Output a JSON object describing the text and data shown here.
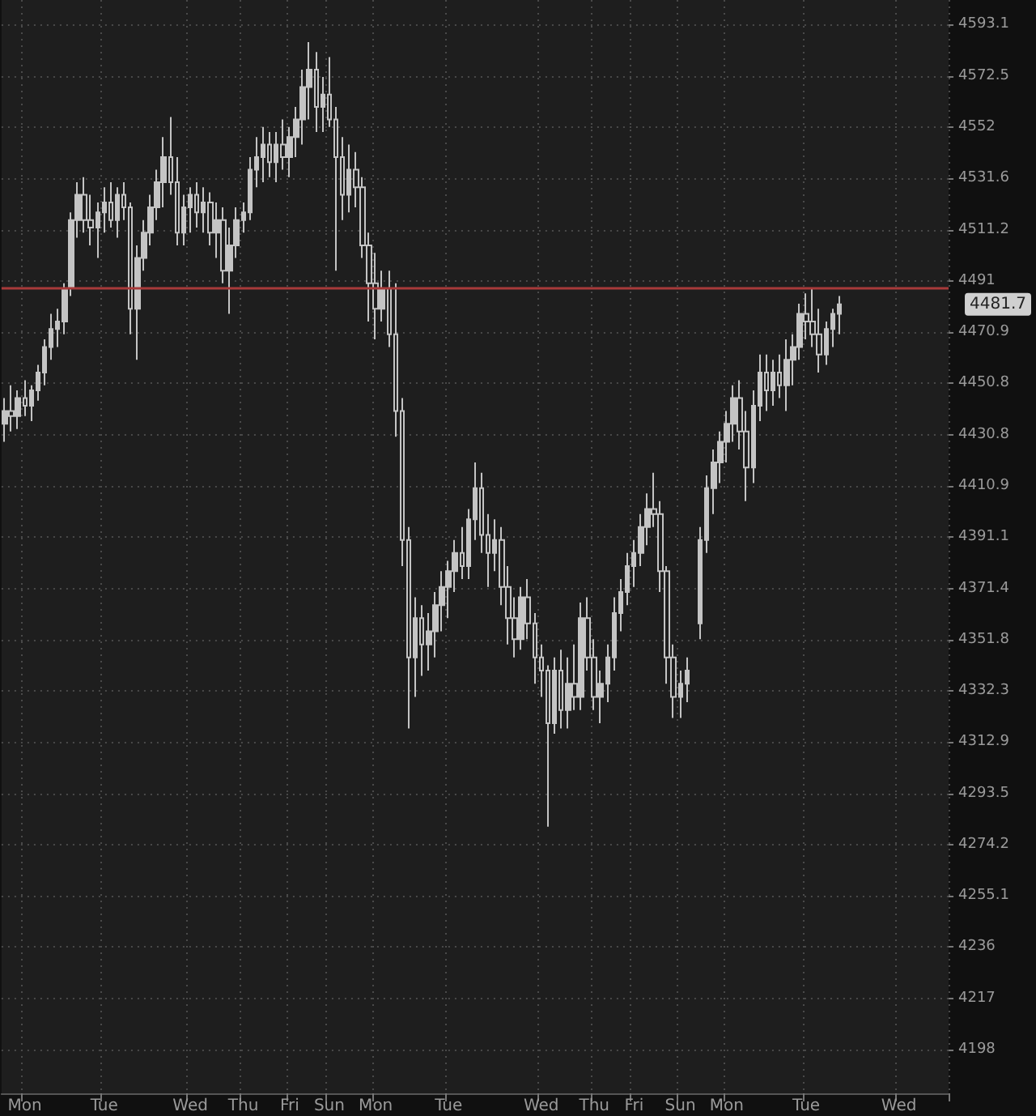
{
  "chart_data": {
    "type": "candlestick",
    "log": true,
    "grid": true,
    "color": "#c4c4c4",
    "ylim": [
      4182,
      4603
    ],
    "yticks": [
      4198,
      4217,
      4236,
      4255.1,
      4274.2,
      4293.5,
      4312.9,
      4332.3,
      4351.8,
      4371.4,
      4391.1,
      4410.9,
      4430.8,
      4450.8,
      4470.9,
      4491,
      4511.2,
      4531.6,
      4552,
      4572.5,
      4593.1
    ],
    "ref_lines": [
      {
        "axis": "y",
        "value": 4488,
        "color": "#a83a3a"
      }
    ],
    "annotations": [
      "4481.7"
    ],
    "categories": [
      null,
      null,
      null,
      "Mon",
      null,
      null,
      null,
      null,
      null,
      null,
      null,
      null,
      null,
      null,
      null,
      "Tue",
      null,
      null,
      null,
      null,
      null,
      null,
      null,
      null,
      null,
      null,
      null,
      null,
      "Wed",
      null,
      null,
      null,
      null,
      null,
      null,
      null,
      "Thu",
      null,
      null,
      null,
      null,
      null,
      null,
      "Fri",
      null,
      null,
      null,
      null,
      null,
      "Sun",
      null,
      null,
      null,
      null,
      null,
      null,
      "Mon",
      null,
      null,
      null,
      null,
      null,
      null,
      null,
      null,
      null,
      null,
      "Tue",
      null,
      null,
      null,
      null,
      null,
      null,
      null,
      null,
      null,
      null,
      null,
      null,
      null,
      "Wed",
      null,
      null,
      null,
      null,
      null,
      null,
      null,
      "Thu",
      null,
      null,
      null,
      null,
      null,
      "Fri",
      null,
      null,
      null,
      null,
      null,
      null,
      "Sun",
      null,
      null,
      null,
      null,
      null,
      null,
      "Mon",
      null,
      null,
      null,
      null,
      null,
      null,
      null,
      null,
      null,
      null,
      null,
      "Tue",
      null,
      null,
      null,
      null,
      null,
      null,
      null,
      null,
      null,
      null,
      null,
      null,
      null,
      "Wed",
      null,
      null,
      null,
      null,
      null,
      null,
      null
    ],
    "ohlc": [
      [
        4435,
        4445,
        4428,
        4440
      ],
      [
        4440,
        4450,
        4432,
        4438
      ],
      [
        4438,
        4448,
        4433,
        4445
      ],
      [
        4445,
        4452,
        4438,
        4442
      ],
      [
        4442,
        4450,
        4436,
        4448
      ],
      [
        4448,
        4458,
        4444,
        4455
      ],
      [
        4455,
        4468,
        4450,
        4465
      ],
      [
        4465,
        4478,
        4460,
        4472
      ],
      [
        4472,
        4480,
        4465,
        4475
      ],
      [
        4475,
        4490,
        4470,
        4488
      ],
      [
        4488,
        4518,
        4485,
        4515
      ],
      [
        4515,
        4530,
        4508,
        4525
      ],
      [
        4525,
        4532,
        4510,
        4515
      ],
      [
        4515,
        4525,
        4505,
        4512
      ],
      [
        4512,
        4522,
        4500,
        4518
      ],
      [
        4518,
        4528,
        4510,
        4522
      ],
      [
        4522,
        4530,
        4512,
        4515
      ],
      [
        4515,
        4528,
        4508,
        4525
      ],
      [
        4525,
        4530,
        4515,
        4520
      ],
      [
        4520,
        4522,
        4470,
        4480
      ],
      [
        4480,
        4505,
        4460,
        4500
      ],
      [
        4500,
        4515,
        4495,
        4510
      ],
      [
        4510,
        4525,
        4505,
        4520
      ],
      [
        4520,
        4535,
        4515,
        4530
      ],
      [
        4530,
        4548,
        4520,
        4540
      ],
      [
        4540,
        4556,
        4525,
        4530
      ],
      [
        4530,
        4540,
        4505,
        4510
      ],
      [
        4510,
        4525,
        4505,
        4520
      ],
      [
        4520,
        4528,
        4510,
        4525
      ],
      [
        4525,
        4530,
        4512,
        4518
      ],
      [
        4518,
        4528,
        4510,
        4522
      ],
      [
        4522,
        4526,
        4505,
        4510
      ],
      [
        4510,
        4522,
        4500,
        4515
      ],
      [
        4515,
        4520,
        4490,
        4495
      ],
      [
        4495,
        4512,
        4478,
        4505
      ],
      [
        4505,
        4520,
        4500,
        4515
      ],
      [
        4515,
        4522,
        4510,
        4518
      ],
      [
        4518,
        4540,
        4515,
        4535
      ],
      [
        4535,
        4548,
        4528,
        4540
      ],
      [
        4540,
        4552,
        4530,
        4545
      ],
      [
        4545,
        4550,
        4532,
        4538
      ],
      [
        4538,
        4550,
        4530,
        4545
      ],
      [
        4545,
        4555,
        4535,
        4540
      ],
      [
        4540,
        4552,
        4532,
        4548
      ],
      [
        4548,
        4560,
        4540,
        4555
      ],
      [
        4555,
        4575,
        4545,
        4568
      ],
      [
        4568,
        4586,
        4555,
        4575
      ],
      [
        4575,
        4582,
        4550,
        4560
      ],
      [
        4560,
        4572,
        4550,
        4565
      ],
      [
        4565,
        4580,
        4552,
        4555
      ],
      [
        4555,
        4560,
        4495,
        4540
      ],
      [
        4540,
        4548,
        4515,
        4525
      ],
      [
        4525,
        4545,
        4518,
        4535
      ],
      [
        4535,
        4542,
        4520,
        4528
      ],
      [
        4528,
        4532,
        4500,
        4505
      ],
      [
        4505,
        4510,
        4475,
        4490
      ],
      [
        4490,
        4502,
        4468,
        4480
      ],
      [
        4480,
        4495,
        4475,
        4488
      ],
      [
        4488,
        4495,
        4465,
        4470
      ],
      [
        4470,
        4490,
        4430,
        4440
      ],
      [
        4440,
        4445,
        4380,
        4390
      ],
      [
        4390,
        4395,
        4318,
        4345
      ],
      [
        4345,
        4368,
        4330,
        4360
      ],
      [
        4360,
        4365,
        4338,
        4350
      ],
      [
        4350,
        4362,
        4340,
        4355
      ],
      [
        4355,
        4370,
        4345,
        4365
      ],
      [
        4365,
        4378,
        4355,
        4372
      ],
      [
        4372,
        4382,
        4360,
        4378
      ],
      [
        4378,
        4390,
        4370,
        4385
      ],
      [
        4385,
        4395,
        4375,
        4380
      ],
      [
        4380,
        4402,
        4375,
        4398
      ],
      [
        4398,
        4420,
        4390,
        4410
      ],
      [
        4410,
        4416,
        4385,
        4392
      ],
      [
        4392,
        4400,
        4372,
        4385
      ],
      [
        4385,
        4398,
        4378,
        4390
      ],
      [
        4390,
        4395,
        4365,
        4372
      ],
      [
        4372,
        4380,
        4350,
        4360
      ],
      [
        4360,
        4368,
        4345,
        4352
      ],
      [
        4352,
        4372,
        4348,
        4368
      ],
      [
        4368,
        4375,
        4352,
        4358
      ],
      [
        4358,
        4362,
        4335,
        4345
      ],
      [
        4345,
        4350,
        4330,
        4340
      ],
      [
        4340,
        4342,
        4281,
        4320
      ],
      [
        4320,
        4345,
        4316,
        4340
      ],
      [
        4340,
        4348,
        4318,
        4325
      ],
      [
        4325,
        4345,
        4318,
        4335
      ],
      [
        4335,
        4350,
        4325,
        4330
      ],
      [
        4330,
        4366,
        4325,
        4360
      ],
      [
        4360,
        4368,
        4340,
        4345
      ],
      [
        4345,
        4352,
        4325,
        4330
      ],
      [
        4330,
        4340,
        4320,
        4335
      ],
      [
        4335,
        4350,
        4328,
        4345
      ],
      [
        4345,
        4368,
        4340,
        4362
      ],
      [
        4362,
        4375,
        4355,
        4370
      ],
      [
        4370,
        4385,
        4365,
        4380
      ],
      [
        4380,
        4390,
        4372,
        4385
      ],
      [
        4385,
        4400,
        4380,
        4395
      ],
      [
        4395,
        4408,
        4388,
        4402
      ],
      [
        4402,
        4416,
        4395,
        4400
      ],
      [
        4400,
        4405,
        4370,
        4378
      ],
      [
        4378,
        4380,
        4335,
        4345
      ],
      [
        4345,
        4350,
        4322,
        4330
      ],
      [
        4330,
        4340,
        4322,
        4335
      ],
      [
        4335,
        4345,
        4328,
        4340
      ],
      null,
      [
        4358,
        4395,
        4352,
        4390
      ],
      [
        4390,
        4415,
        4385,
        4410
      ],
      [
        4410,
        4425,
        4400,
        4420
      ],
      [
        4420,
        4432,
        4412,
        4428
      ],
      [
        4428,
        4440,
        4420,
        4435
      ],
      [
        4435,
        4450,
        4428,
        4445
      ],
      [
        4445,
        4452,
        4425,
        4432
      ],
      [
        4432,
        4440,
        4405,
        4418
      ],
      [
        4418,
        4448,
        4412,
        4442
      ],
      [
        4442,
        4462,
        4436,
        4455
      ],
      [
        4455,
        4462,
        4440,
        4448
      ],
      [
        4448,
        4460,
        4442,
        4455
      ],
      [
        4455,
        4462,
        4445,
        4450
      ],
      [
        4450,
        4468,
        4440,
        4460
      ],
      [
        4460,
        4470,
        4450,
        4465
      ],
      [
        4465,
        4482,
        4460,
        4478
      ],
      [
        4478,
        4486,
        4468,
        4475
      ],
      [
        4475,
        4488,
        4465,
        4470
      ],
      [
        4470,
        4480,
        4455,
        4462
      ],
      [
        4462,
        4475,
        4458,
        4472
      ],
      [
        4472,
        4480,
        4465,
        4478
      ],
      [
        4478,
        4485,
        4470,
        4481.7
      ],
      null,
      null,
      null,
      null,
      null,
      null,
      null,
      null,
      null,
      null,
      null,
      null,
      null,
      null,
      null,
      null
    ]
  }
}
